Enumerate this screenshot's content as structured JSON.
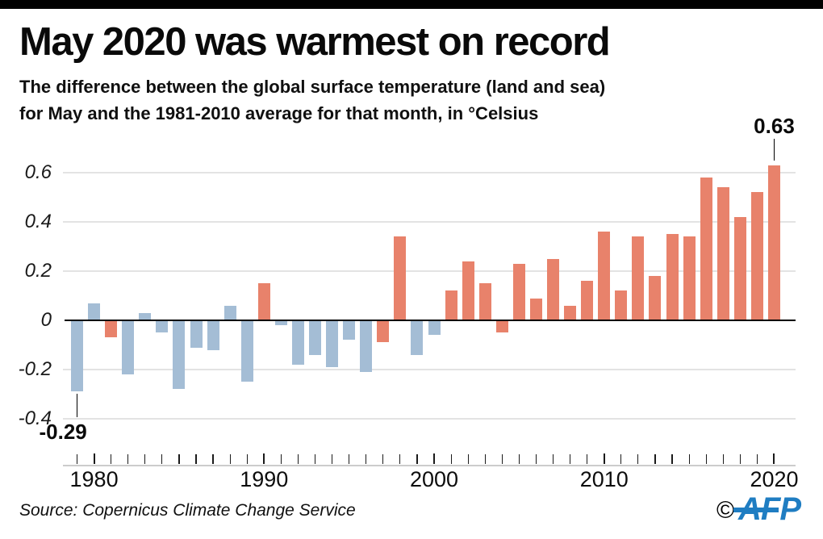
{
  "page": {
    "title": "May 2020 was warmest on record",
    "subtitle_line1": "The difference between the global surface temperature (land and sea)",
    "subtitle_line2": "for May and the 1981-2010 average for that month, in °Celsius",
    "source": "Source: Copernicus Climate Change Service",
    "copyright_symbol": "©",
    "brand": "AFP"
  },
  "colors": {
    "warm_bar": "#e8826b",
    "cool_bar": "#a4bdd5",
    "zero_line": "#000000",
    "gridline": "#e3e3e3",
    "axis_line": "#cccccc",
    "tick": "#1a1a1a",
    "brand_blue": "#1f7dc2",
    "top_bar": "#000000"
  },
  "chart_data": {
    "type": "bar",
    "title": "May 2020 was warmest on record",
    "subtitle": "The difference between the global surface temperature (land and sea) for May and the 1981-2010 average for that month, in °Celsius",
    "unit": "°Celsius",
    "grid": true,
    "legend": "none",
    "ylim": [
      -0.45,
      0.72
    ],
    "yticks": [
      0.6,
      0.4,
      0.2,
      0,
      -0.2,
      -0.4
    ],
    "ytick_labels": [
      "0.6",
      "0.4",
      "0.2",
      "0",
      "-0.2",
      "-0.4"
    ],
    "xtick_years_labeled": [
      "1980",
      "1990",
      "2000",
      "2010",
      "2020"
    ],
    "categories": [
      1979,
      1980,
      1981,
      1982,
      1983,
      1984,
      1985,
      1986,
      1987,
      1988,
      1989,
      1990,
      1991,
      1992,
      1993,
      1994,
      1995,
      1996,
      1997,
      1998,
      1999,
      2000,
      2001,
      2002,
      2003,
      2004,
      2005,
      2006,
      2007,
      2008,
      2009,
      2010,
      2011,
      2012,
      2013,
      2014,
      2015,
      2016,
      2017,
      2018,
      2019,
      2020
    ],
    "values": [
      -0.29,
      0.07,
      -0.07,
      -0.22,
      0.03,
      -0.05,
      -0.28,
      -0.11,
      -0.12,
      0.06,
      -0.25,
      0.15,
      -0.02,
      -0.18,
      -0.14,
      -0.19,
      -0.08,
      -0.21,
      -0.09,
      0.34,
      -0.14,
      -0.06,
      0.12,
      0.24,
      0.15,
      -0.05,
      0.23,
      0.09,
      0.25,
      0.06,
      0.16,
      0.36,
      0.12,
      0.34,
      0.18,
      0.35,
      0.34,
      0.58,
      0.54,
      0.42,
      0.52,
      0.63
    ],
    "bar_colors": [
      "cool",
      "cool",
      "warm",
      "cool",
      "cool",
      "cool",
      "cool",
      "cool",
      "cool",
      "cool",
      "cool",
      "warm",
      "cool",
      "cool",
      "cool",
      "cool",
      "cool",
      "cool",
      "warm",
      "warm",
      "cool",
      "cool",
      "warm",
      "warm",
      "warm",
      "warm",
      "warm",
      "warm",
      "warm",
      "warm",
      "warm",
      "warm",
      "warm",
      "warm",
      "warm",
      "warm",
      "warm",
      "warm",
      "warm",
      "warm",
      "warm",
      "warm"
    ],
    "annotations": [
      {
        "year": 1979,
        "value": -0.29,
        "label": "-0.29",
        "placement": "below"
      },
      {
        "year": 2020,
        "value": 0.63,
        "label": "0.63",
        "placement": "above"
      }
    ]
  }
}
